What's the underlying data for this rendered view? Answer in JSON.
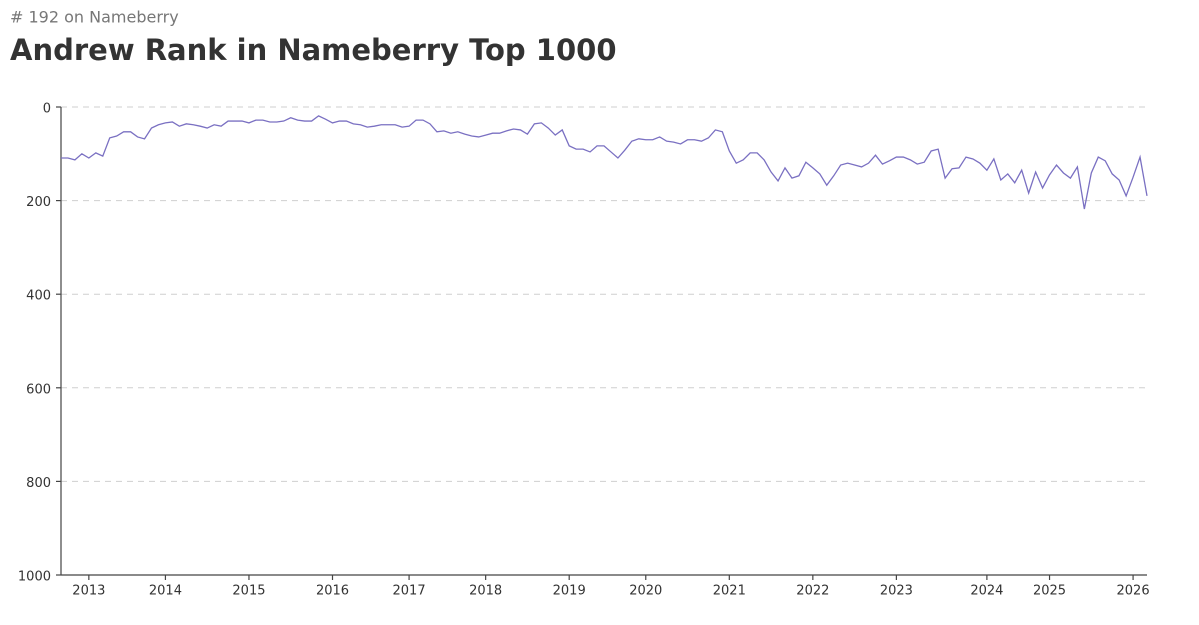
{
  "chart_data": {
    "type": "line",
    "subtitle": "# 192 on Nameberry",
    "title": "Andrew Rank in Nameberry Top 1000",
    "categories": [
      null,
      null,
      null,
      null,
      "2013",
      null,
      null,
      null,
      null,
      null,
      null,
      null,
      null,
      null,
      null,
      "2014",
      null,
      null,
      null,
      null,
      null,
      null,
      null,
      null,
      null,
      null,
      null,
      "2015",
      null,
      null,
      null,
      null,
      null,
      null,
      null,
      null,
      null,
      null,
      null,
      "2016",
      null,
      null,
      null,
      null,
      null,
      null,
      null,
      null,
      null,
      null,
      "2017",
      null,
      null,
      null,
      null,
      null,
      null,
      null,
      null,
      null,
      null,
      "2018",
      null,
      null,
      null,
      null,
      null,
      null,
      null,
      null,
      null,
      null,
      null,
      "2019",
      null,
      null,
      null,
      null,
      null,
      null,
      null,
      null,
      null,
      null,
      "2020",
      null,
      null,
      null,
      null,
      null,
      null,
      null,
      null,
      null,
      null,
      null,
      "2021",
      null,
      null,
      null,
      null,
      null,
      null,
      null,
      null,
      null,
      null,
      null,
      "2022",
      null,
      null,
      null,
      null,
      null,
      null,
      null,
      null,
      null,
      null,
      null,
      "2023",
      null,
      null,
      null,
      null,
      null,
      null,
      null,
      null,
      null,
      null,
      null,
      null,
      "2024",
      null,
      null,
      null,
      null,
      null,
      null,
      null,
      null,
      "2025",
      null,
      null,
      null,
      null,
      null,
      null,
      null,
      null,
      null,
      null,
      null,
      "2026",
      null,
      null
    ],
    "values": [
      109,
      109,
      113,
      100,
      109,
      98,
      105,
      66,
      62,
      53,
      53,
      64,
      68,
      45,
      38,
      34,
      32,
      41,
      36,
      38,
      41,
      45,
      38,
      41,
      30,
      30,
      30,
      34,
      28,
      28,
      32,
      32,
      30,
      23,
      28,
      30,
      30,
      19,
      26,
      34,
      30,
      30,
      36,
      38,
      43,
      41,
      38,
      38,
      38,
      43,
      41,
      28,
      28,
      36,
      53,
      51,
      56,
      53,
      58,
      62,
      64,
      60,
      56,
      56,
      51,
      47,
      49,
      58,
      36,
      34,
      45,
      60,
      49,
      83,
      90,
      90,
      96,
      83,
      83,
      96,
      109,
      92,
      73,
      68,
      70,
      70,
      64,
      73,
      75,
      79,
      70,
      70,
      73,
      66,
      49,
      53,
      94,
      120,
      113,
      98,
      98,
      113,
      139,
      158,
      130,
      152,
      147,
      118,
      130,
      143,
      167,
      147,
      124,
      120,
      124,
      128,
      120,
      103,
      122,
      115,
      107,
      107,
      113,
      122,
      118,
      94,
      90,
      152,
      132,
      130,
      107,
      111,
      120,
      135,
      111,
      156,
      143,
      162,
      135,
      184,
      139,
      173,
      145,
      124,
      141,
      152,
      128,
      218,
      141,
      107,
      115,
      143,
      156,
      190,
      150,
      107,
      190
    ],
    "color": "#7a70c2",
    "ylim": [
      0,
      1000
    ],
    "yticks": [
      0,
      200,
      400,
      600,
      800,
      1000
    ],
    "invert_y": true,
    "grid": true
  }
}
